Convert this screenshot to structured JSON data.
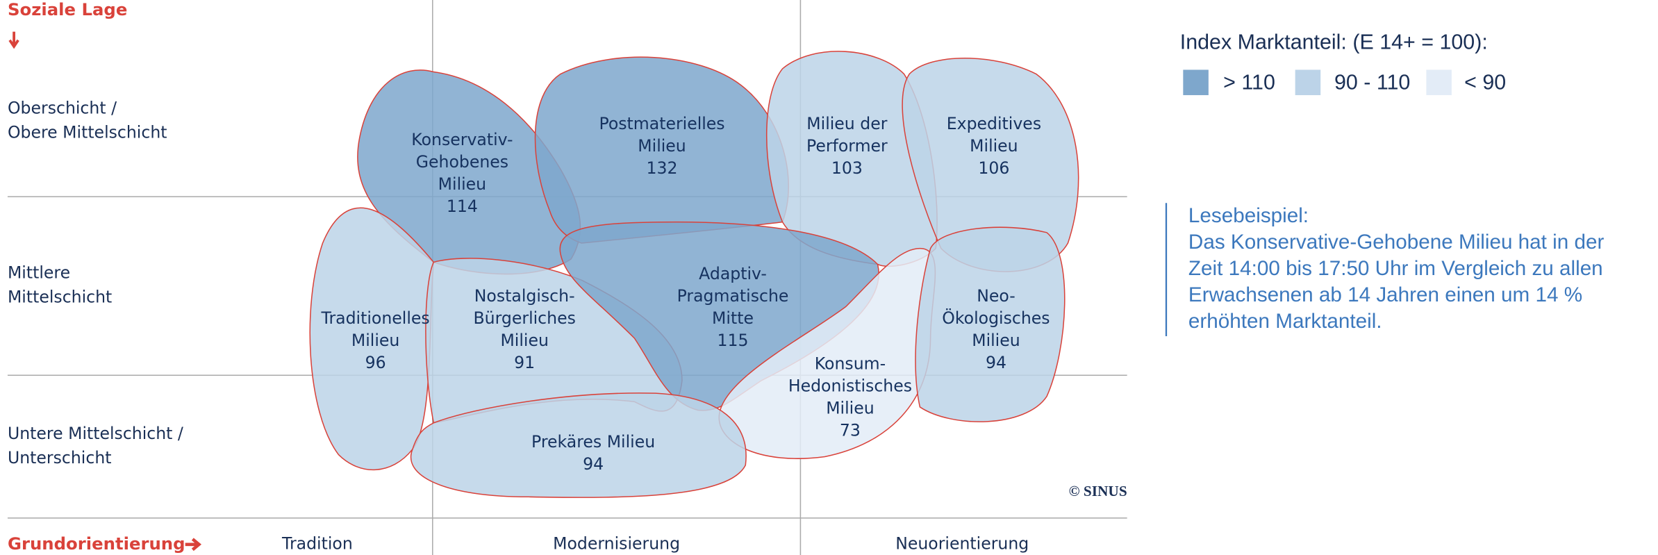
{
  "vertical_axis": {
    "title": "Soziale Lage",
    "rows": [
      [
        "Oberschicht /",
        "Obere Mittelschicht"
      ],
      [
        "Mittlere",
        "Mittelschicht"
      ],
      [
        "Untere Mittelschicht /",
        "Unterschicht"
      ]
    ]
  },
  "horizontal_axis": {
    "title": "Grundorientierung",
    "columns": [
      "Tradition",
      "Modernisierung",
      "Neuorientierung"
    ]
  },
  "legend": {
    "title": "Index Marktanteil: (E 14+ = 100):",
    "items": [
      {
        "label": "> 110",
        "color": "#7ea7cc"
      },
      {
        "label": "90 - 110",
        "color": "#bcd3e8"
      },
      {
        "label": "< 90",
        "color": "#e3ecf7"
      }
    ]
  },
  "milieus": [
    {
      "lines": [
        "Konservativ-",
        "Gehobenes",
        "Milieu"
      ],
      "index": "114",
      "color": "#7ea7cc"
    },
    {
      "lines": [
        "Postmaterielles",
        "Milieu"
      ],
      "index": "132",
      "color": "#7ea7cc"
    },
    {
      "lines": [
        "Milieu der",
        "Performer"
      ],
      "index": "103",
      "color": "#bcd3e8"
    },
    {
      "lines": [
        "Expeditives",
        "Milieu"
      ],
      "index": "106",
      "color": "#bcd3e8"
    },
    {
      "lines": [
        "Traditionelles",
        "Milieu"
      ],
      "index": "96",
      "color": "#bcd3e8"
    },
    {
      "lines": [
        "Nostalgisch-",
        "Bürgerliches",
        "Milieu"
      ],
      "index": "91",
      "color": "#bcd3e8"
    },
    {
      "lines": [
        "Adaptiv-",
        "Pragmatische",
        "Mitte"
      ],
      "index": "115",
      "color": "#7ea7cc"
    },
    {
      "lines": [
        "Konsum-",
        "Hedonistisches",
        "Milieu"
      ],
      "index": "73",
      "color": "#e3ecf7"
    },
    {
      "lines": [
        "Neo-",
        "Ökologisches",
        "Milieu"
      ],
      "index": "94",
      "color": "#bcd3e8"
    },
    {
      "lines": [
        "Prekäres Milieu"
      ],
      "index": "94",
      "color": "#bcd3e8"
    }
  ],
  "copyright": "© SINUS",
  "reading_example": {
    "title": "Lesebeispiel:",
    "lines": [
      "Das Konservative-Gehobene Milieu hat in der",
      "Zeit 14:00 bis 17:50 Uhr im Vergleich zu allen",
      "Erwachsenen ab 14 Jahren einen um 14 %",
      "erhöhten Marktanteil."
    ]
  }
}
